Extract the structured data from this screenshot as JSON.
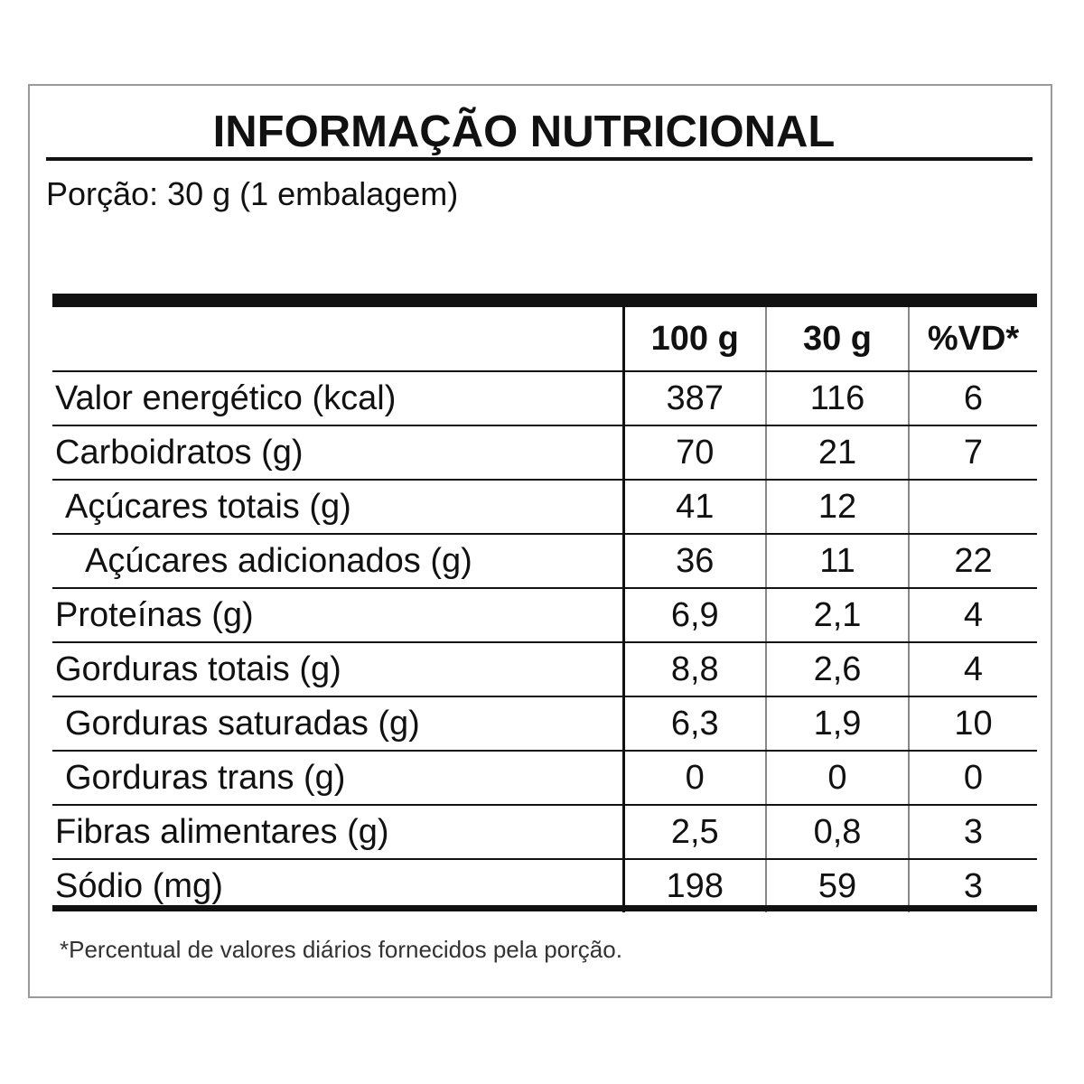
{
  "title": "INFORMAÇÃO NUTRICIONAL",
  "portion": "Porção: 30 g (1 embalagem)",
  "headers": [
    "",
    "100 g",
    "30 g",
    "%VD*"
  ],
  "rows": [
    {
      "label": "Valor energético (kcal)",
      "per100": "387",
      "per30": "116",
      "vd": "6"
    },
    {
      "label": "Carboidratos (g)",
      "per100": "70",
      "per30": "21",
      "vd": "7"
    },
    {
      "label": "Açúcares totais (g)",
      "per100": "41",
      "per30": "12",
      "vd": ""
    },
    {
      "label": "Açúcares adicionados (g)",
      "per100": "36",
      "per30": "11",
      "vd": "22"
    },
    {
      "label": "Proteínas (g)",
      "per100": "6,9",
      "per30": "2,1",
      "vd": "4"
    },
    {
      "label": "Gorduras totais (g)",
      "per100": "8,8",
      "per30": "2,6",
      "vd": "4"
    },
    {
      "label": "Gorduras saturadas (g)",
      "per100": "6,3",
      "per30": "1,9",
      "vd": "10"
    },
    {
      "label": "Gorduras trans (g)",
      "per100": "0",
      "per30": "0",
      "vd": "0"
    },
    {
      "label": "Fibras alimentares (g)",
      "per100": "2,5",
      "per30": "0,8",
      "vd": "3"
    },
    {
      "label": "Sódio (mg)",
      "per100": "198",
      "per30": "59",
      "vd": "3"
    }
  ],
  "footnote": "*Percentual de valores diários fornecidos pela porção."
}
